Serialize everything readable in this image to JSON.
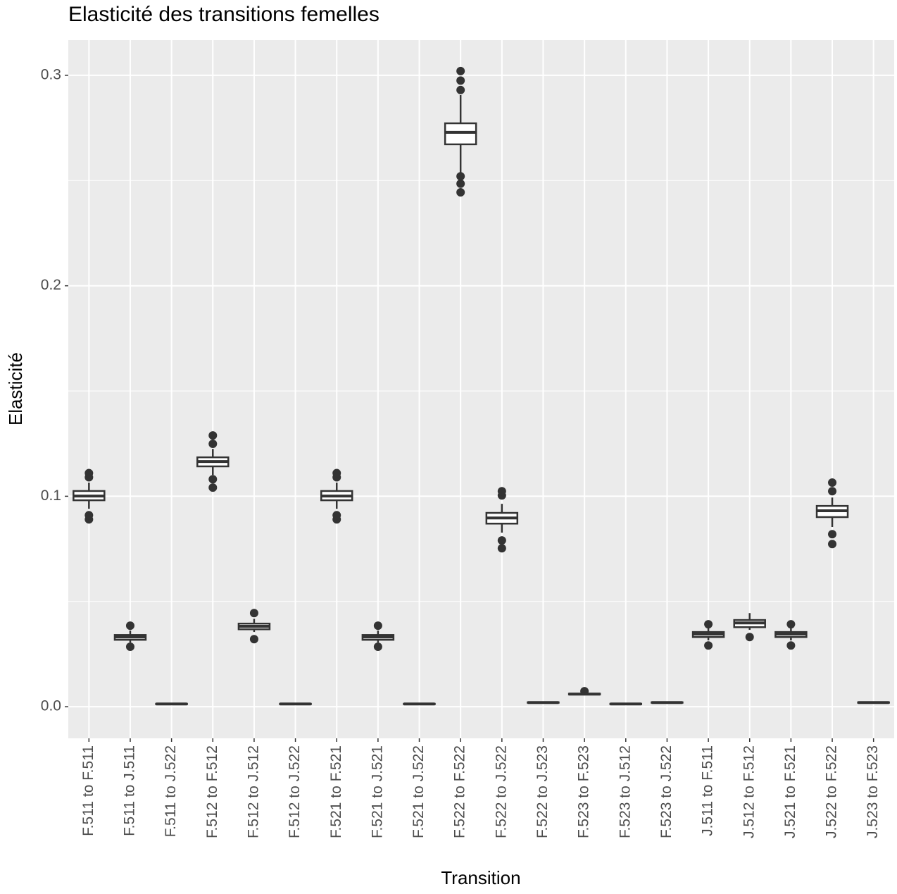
{
  "chart_data": {
    "type": "box",
    "title": "Elasticité des transitions femelles",
    "x_label": "Transition",
    "y_label": "Elasticité",
    "categories": [
      "F.511 to F.511",
      "F.511 to J.511",
      "F.511 to J.522",
      "F.512 to F.512",
      "F.512 to J.512",
      "F.512 to J.522",
      "F.521 to F.521",
      "F.521 to J.521",
      "F.521 to J.522",
      "F.522 to F.522",
      "F.522 to J.522",
      "F.522 to J.523",
      "F.523 to F.523",
      "F.523 to J.512",
      "F.523 to J.522",
      "J.511 to F.511",
      "J.512 to F.512",
      "J.521 to F.521",
      "J.522 to F.522",
      "J.523 to F.523"
    ],
    "boxes": [
      {
        "lower": 0.094,
        "q1": 0.0981,
        "median": 0.1001,
        "q3": 0.1025,
        "upper": 0.1065,
        "outliers": [
          0.089,
          0.091,
          0.109,
          0.111
        ]
      },
      {
        "lower": 0.0305,
        "q1": 0.0318,
        "median": 0.0331,
        "q3": 0.0341,
        "upper": 0.0362,
        "outliers": [
          0.0285,
          0.0385
        ]
      },
      {
        "lower": 0.001,
        "q1": 0.0012,
        "median": 0.0013,
        "q3": 0.0014,
        "upper": 0.0016,
        "outliers": []
      },
      {
        "lower": 0.1101,
        "q1": 0.1142,
        "median": 0.1165,
        "q3": 0.1185,
        "upper": 0.1225,
        "outliers": [
          0.1041,
          0.1081,
          0.1249,
          0.1289
        ]
      },
      {
        "lower": 0.0355,
        "q1": 0.0368,
        "median": 0.0382,
        "q3": 0.0395,
        "upper": 0.0418,
        "outliers": [
          0.0321,
          0.0445
        ]
      },
      {
        "lower": 0.001,
        "q1": 0.0012,
        "median": 0.0013,
        "q3": 0.0014,
        "upper": 0.0016,
        "outliers": []
      },
      {
        "lower": 0.094,
        "q1": 0.0981,
        "median": 0.1001,
        "q3": 0.1025,
        "upper": 0.1065,
        "outliers": [
          0.089,
          0.091,
          0.109,
          0.111
        ]
      },
      {
        "lower": 0.0305,
        "q1": 0.0318,
        "median": 0.0331,
        "q3": 0.0341,
        "upper": 0.0362,
        "outliers": [
          0.0285,
          0.0385
        ]
      },
      {
        "lower": 0.001,
        "q1": 0.0012,
        "median": 0.0013,
        "q3": 0.0014,
        "upper": 0.0016,
        "outliers": []
      },
      {
        "lower": 0.2538,
        "q1": 0.2672,
        "median": 0.2729,
        "q3": 0.2772,
        "upper": 0.2906,
        "outliers": [
          0.2444,
          0.2485,
          0.252,
          0.293,
          0.2975,
          0.302
        ]
      },
      {
        "lower": 0.0827,
        "q1": 0.087,
        "median": 0.0897,
        "q3": 0.0921,
        "upper": 0.0964,
        "outliers": [
          0.0753,
          0.079,
          0.1004,
          0.1024
        ]
      },
      {
        "lower": 0.0017,
        "q1": 0.0019,
        "median": 0.002,
        "q3": 0.0021,
        "upper": 0.0023,
        "outliers": []
      },
      {
        "lower": 0.0055,
        "q1": 0.0058,
        "median": 0.006,
        "q3": 0.0062,
        "upper": 0.0066,
        "outliers": [
          0.0074
        ]
      },
      {
        "lower": 0.001,
        "q1": 0.0012,
        "median": 0.0013,
        "q3": 0.0014,
        "upper": 0.0016,
        "outliers": []
      },
      {
        "lower": 0.0017,
        "q1": 0.0019,
        "median": 0.002,
        "q3": 0.0021,
        "upper": 0.0023,
        "outliers": []
      },
      {
        "lower": 0.0315,
        "q1": 0.0331,
        "median": 0.0345,
        "q3": 0.0355,
        "upper": 0.0375,
        "outliers": [
          0.0291,
          0.0392
        ]
      },
      {
        "lower": 0.0365,
        "q1": 0.0378,
        "median": 0.0398,
        "q3": 0.0412,
        "upper": 0.0445,
        "outliers": [
          0.0331
        ]
      },
      {
        "lower": 0.0315,
        "q1": 0.0331,
        "median": 0.0345,
        "q3": 0.0355,
        "upper": 0.0375,
        "outliers": [
          0.0291,
          0.0392
        ]
      },
      {
        "lower": 0.0854,
        "q1": 0.0901,
        "median": 0.0931,
        "q3": 0.0954,
        "upper": 0.0994,
        "outliers": [
          0.0773,
          0.082,
          0.1024,
          0.1065
        ]
      },
      {
        "lower": 0.0017,
        "q1": 0.0019,
        "median": 0.002,
        "q3": 0.0021,
        "upper": 0.0023,
        "outliers": []
      }
    ],
    "ylim": [
      -0.015,
      0.3167
    ],
    "yticks": [
      {
        "value": 0,
        "label": "0.0"
      },
      0.1,
      0.2,
      0.3
    ],
    "minor_yticks": [
      0.05,
      0.15,
      0.25
    ],
    "grid": true,
    "color": "#333333",
    "fill": "#ffffff"
  }
}
